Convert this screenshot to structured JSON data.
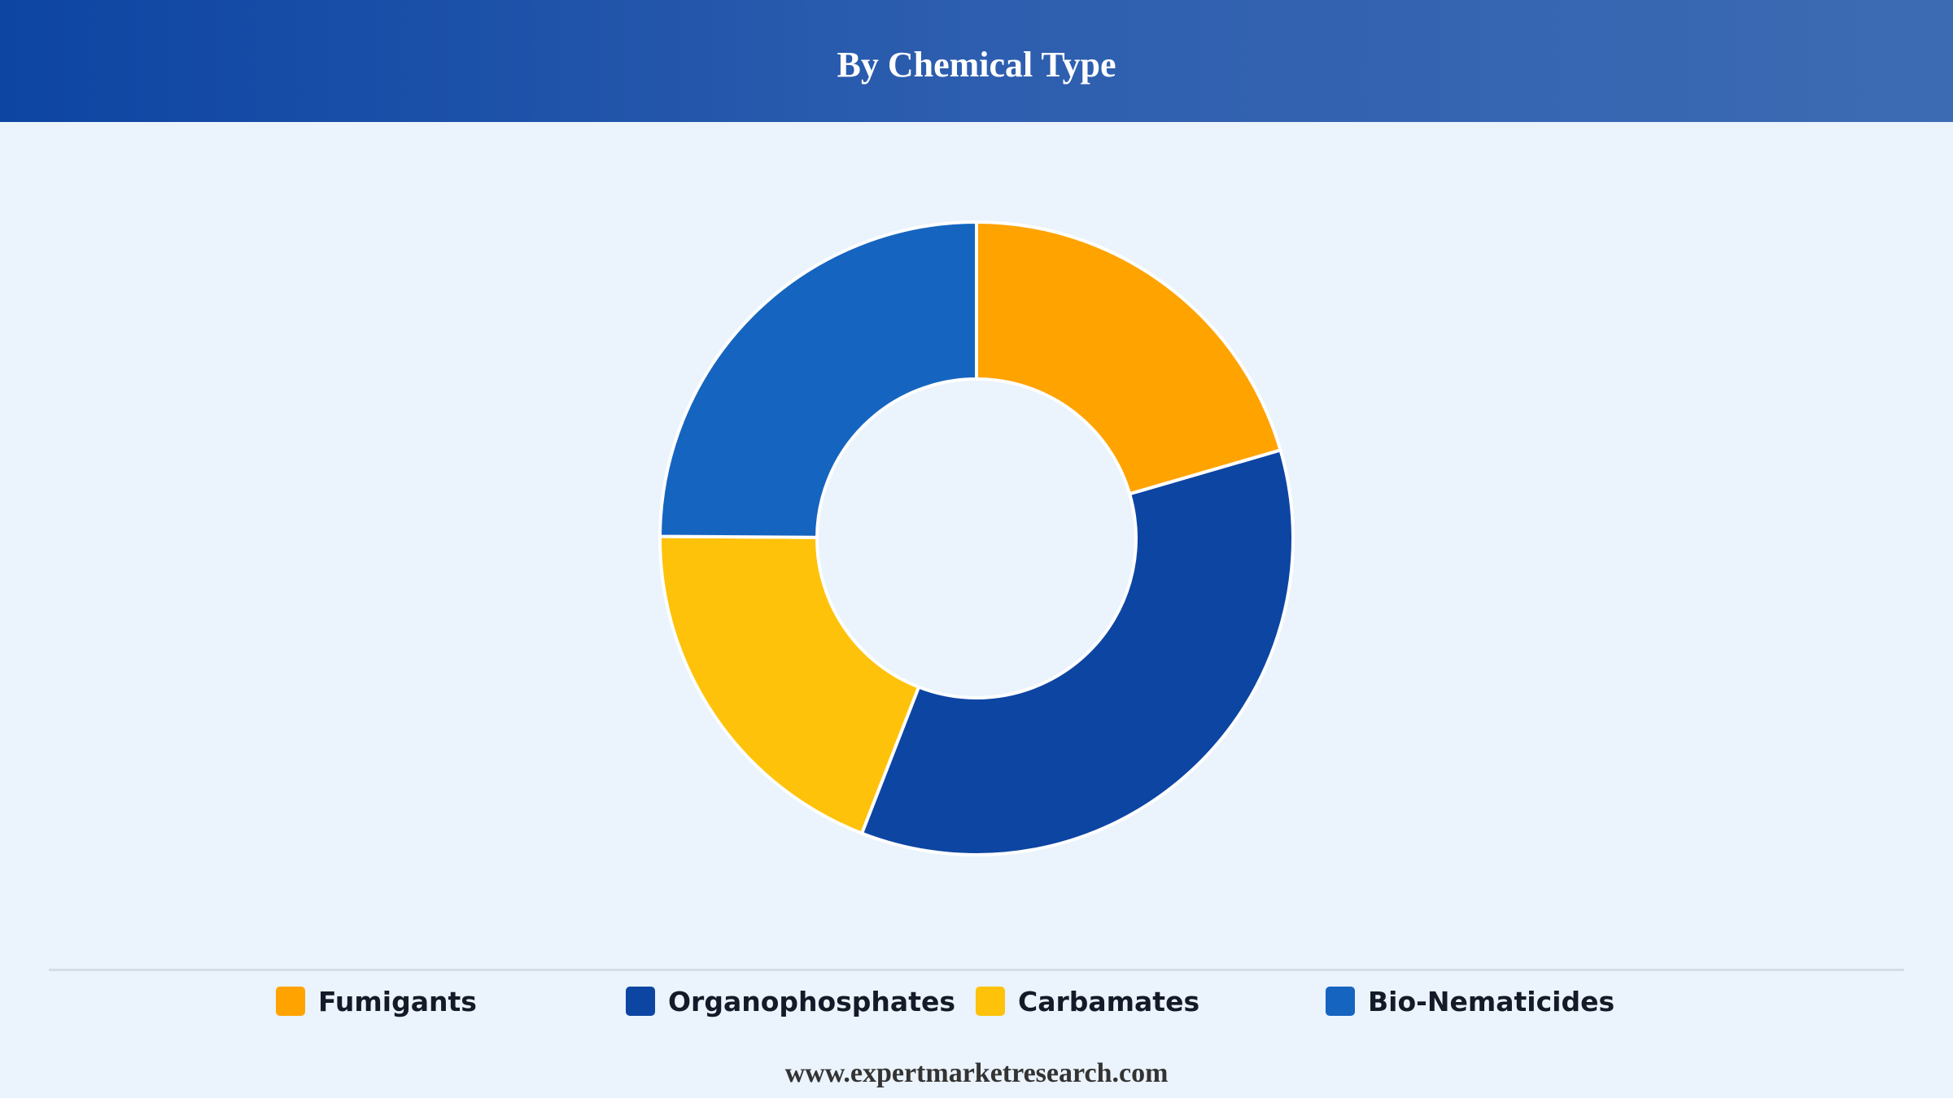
{
  "header": {
    "title": "By Chemical Type"
  },
  "chart_data": {
    "type": "pie",
    "title": "By Chemical Type",
    "donut": true,
    "legend_position": "bottom",
    "categories": [
      "Fumigants",
      "Organophosphates",
      "Carbamates",
      "Bio-Nematicides"
    ],
    "values": [
      20.5,
      35.4,
      19.2,
      24.9
    ],
    "colors": [
      "#FFA300",
      "#0D45A3",
      "#FFC20A",
      "#1565C0"
    ]
  },
  "legend": {
    "items": [
      {
        "label": "Fumigants",
        "color": "#FFA300"
      },
      {
        "label": "Organophosphates",
        "color": "#0D45A3"
      },
      {
        "label": "Carbamates",
        "color": "#FFC20A"
      },
      {
        "label": "Bio-Nematicides",
        "color": "#1565C0"
      }
    ]
  },
  "footer": {
    "source": "www.expertmarketresearch.com"
  }
}
